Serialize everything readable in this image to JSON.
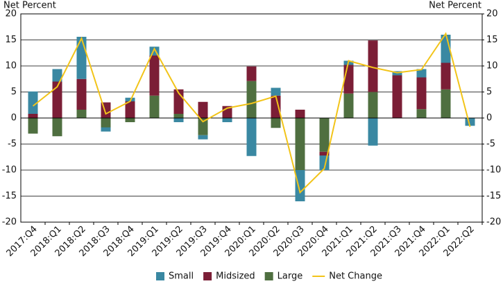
{
  "chart_data": {
    "type": "stacked-bar-line",
    "y_label": "Net Percent",
    "y2_label": "Net Percent",
    "categories": [
      "2017:Q4",
      "2018:Q1",
      "2018:Q2",
      "2018:Q3",
      "2018:Q4",
      "2019:Q1",
      "2019:Q2",
      "2019:Q3",
      "2019:Q4",
      "2020:Q1",
      "2020:Q2",
      "2020:Q3",
      "2020:Q4",
      "2021:Q1",
      "2021:Q2",
      "2021:Q3",
      "2021:Q4",
      "2022:Q1",
      "2022:Q2"
    ],
    "series": [
      {
        "name": "Small",
        "color": "#3a88a2",
        "values": [
          4.3,
          2.4,
          8.1,
          -0.8,
          0.7,
          1.7,
          -0.8,
          -0.8,
          -0.8,
          -7.3,
          1.5,
          -6,
          -2.8,
          0.8,
          -5.3,
          0.8,
          1.6,
          5.4,
          -1.5
        ]
      },
      {
        "name": "Midsized",
        "color": "#7b1e36",
        "values": [
          0.8,
          7,
          5.9,
          3,
          3.2,
          7.7,
          4.7,
          3.1,
          2.3,
          2.8,
          4.3,
          1.6,
          -0.7,
          5.5,
          9.9,
          8.2,
          6.1,
          5.1,
          0
        ]
      },
      {
        "name": "Large",
        "color": "#4f6f40",
        "values": [
          -3,
          -3.5,
          1.6,
          -1.8,
          -0.8,
          4.3,
          0.8,
          -3.3,
          0,
          7.1,
          -1.9,
          -10,
          -6.5,
          4.7,
          5,
          0,
          1.7,
          5.5,
          0
        ]
      },
      {
        "name": "Net Change",
        "color": "#f2c419",
        "line": true,
        "values": [
          2.3,
          6,
          15.3,
          0.8,
          3.2,
          13.3,
          4.8,
          -0.7,
          1.9,
          2.8,
          4.2,
          -14.3,
          -9.7,
          11,
          9.7,
          8.7,
          9.3,
          16.2,
          -1.7
        ]
      }
    ],
    "ylim": [
      -20,
      20
    ],
    "yticks": [
      -20,
      -15,
      -10,
      -5,
      0,
      5,
      10,
      15,
      20
    ],
    "y2lim": [
      -20,
      20
    ],
    "y2ticks": [
      -20,
      -15,
      -10,
      -5,
      0,
      5,
      10,
      15,
      20
    ],
    "grid": true
  }
}
